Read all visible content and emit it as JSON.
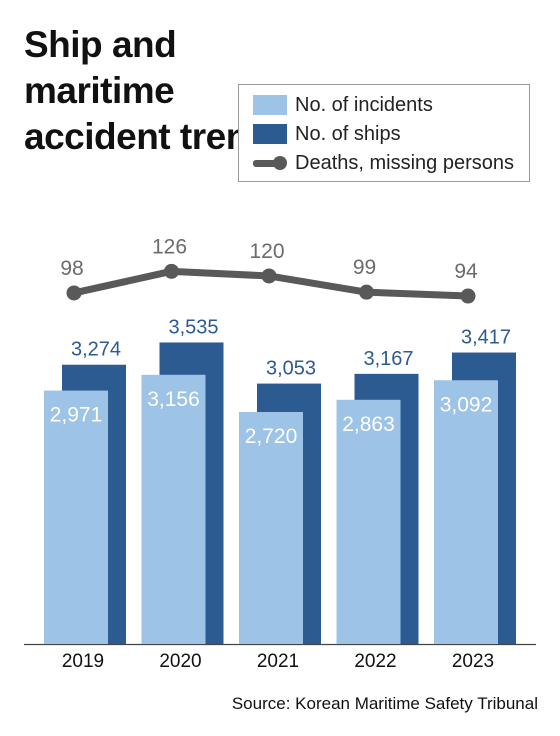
{
  "title": "Ship and maritime accident trends",
  "source": "Source:  Korean Maritime Safety Tribunal",
  "colors": {
    "incidents": "#9dc3e6",
    "ships": "#2c5b91",
    "deaths": "#595959",
    "incidents_label": "#ffffff",
    "ships_label": "#2c5b91",
    "deaths_label": "#6b6b6b"
  },
  "chart_data": {
    "type": "bar",
    "categories": [
      "2019",
      "2020",
      "2021",
      "2022",
      "2023"
    ],
    "series": [
      {
        "name": "No. of incidents",
        "type": "bar",
        "values": [
          2971,
          3156,
          2720,
          2863,
          3092
        ],
        "labels": [
          "2,971",
          "3,156",
          "2,720",
          "2,863",
          "3,092"
        ]
      },
      {
        "name": "No. of ships",
        "type": "bar",
        "values": [
          3274,
          3535,
          3053,
          3167,
          3417
        ],
        "labels": [
          "3,274",
          "3,535",
          "3,053",
          "3,167",
          "3,417"
        ]
      },
      {
        "name": "Deaths, missing persons",
        "type": "line",
        "values": [
          98,
          126,
          120,
          99,
          94
        ],
        "labels": [
          "98",
          "126",
          "120",
          "99",
          "94"
        ]
      }
    ],
    "legend_position": "top-right",
    "grid": false
  }
}
